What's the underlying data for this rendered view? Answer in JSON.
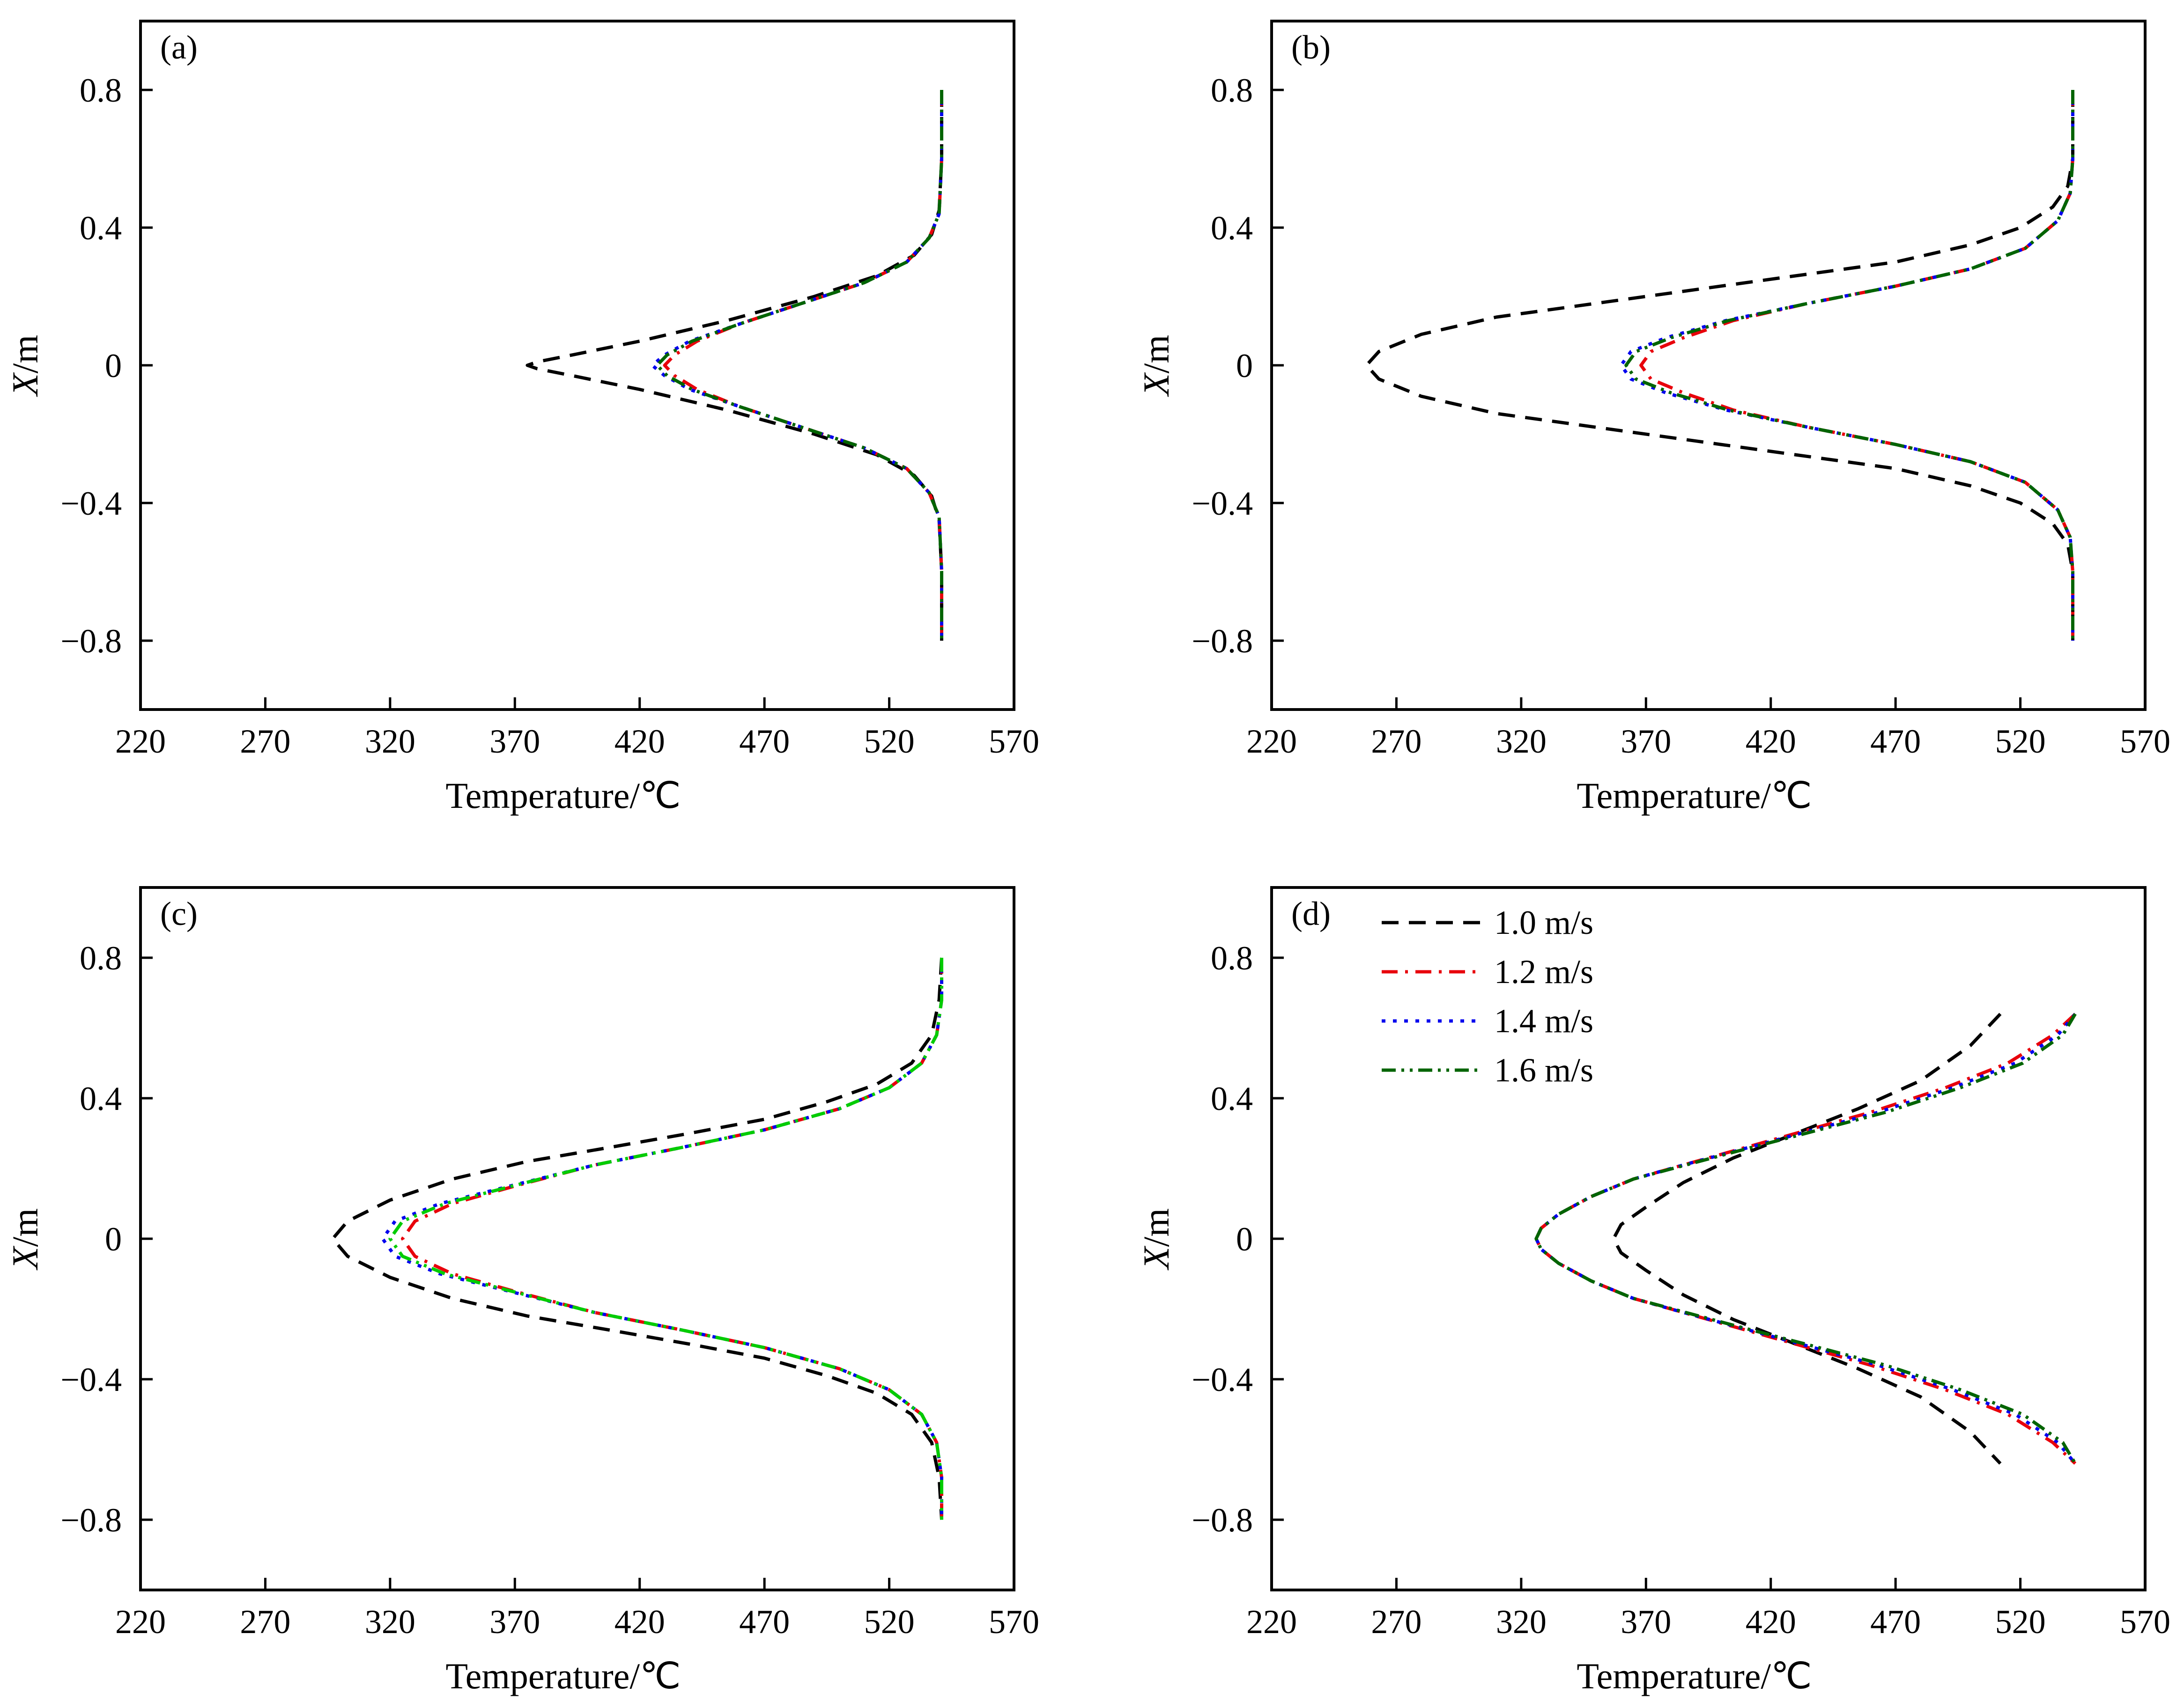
{
  "chart_data": [
    {
      "type": "line",
      "panel_label": "(a)",
      "xlabel": "Temperature/℃",
      "ylabel_italic": "X",
      "ylabel_rest": "/m",
      "xlim": [
        220,
        570
      ],
      "ylim": [
        -1.0,
        1.0
      ],
      "xticks": [
        "220",
        "270",
        "320",
        "370",
        "420",
        "470",
        "520",
        "570"
      ],
      "yticks": [
        "0.8",
        "0.4",
        "0",
        "−0.4",
        "−0.8"
      ],
      "series": [
        {
          "label": "1.0 m/s",
          "x": [
            541,
            541,
            540,
            537,
            530,
            515,
            490,
            455,
            420,
            393,
            379,
            375,
            379,
            393,
            420,
            455,
            490,
            515,
            530,
            537,
            540,
            541,
            541
          ],
          "y": [
            0.8,
            0.6,
            0.45,
            0.38,
            0.32,
            0.26,
            0.2,
            0.13,
            0.07,
            0.03,
            0.01,
            0,
            -0.01,
            -0.03,
            -0.07,
            -0.13,
            -0.2,
            -0.26,
            -0.32,
            -0.38,
            -0.45,
            -0.6,
            -0.8
          ]
        },
        {
          "label": "1.2 m/s",
          "x": [
            541,
            541,
            540,
            536,
            527,
            510,
            485,
            460,
            443,
            434,
            430,
            434,
            443,
            460,
            485,
            510,
            527,
            536,
            540,
            541,
            541
          ],
          "y": [
            0.8,
            0.6,
            0.44,
            0.37,
            0.3,
            0.24,
            0.18,
            0.12,
            0.07,
            0.03,
            0,
            -0.03,
            -0.07,
            -0.12,
            -0.18,
            -0.24,
            -0.3,
            -0.37,
            -0.44,
            -0.6,
            -0.8
          ]
        },
        {
          "label": "1.4 m/s",
          "x": [
            541,
            541,
            540,
            536,
            527,
            510,
            485,
            460,
            440,
            430,
            425,
            430,
            440,
            460,
            485,
            510,
            527,
            536,
            540,
            541,
            541
          ],
          "y": [
            0.8,
            0.6,
            0.44,
            0.37,
            0.3,
            0.24,
            0.18,
            0.12,
            0.07,
            0.03,
            0,
            -0.03,
            -0.07,
            -0.12,
            -0.18,
            -0.24,
            -0.3,
            -0.37,
            -0.44,
            -0.6,
            -0.8
          ]
        },
        {
          "label": "1.6 m/s",
          "x": [
            541,
            541,
            540,
            536,
            527,
            510,
            485,
            460,
            441,
            431,
            427,
            431,
            441,
            460,
            485,
            510,
            527,
            536,
            540,
            541,
            541
          ],
          "y": [
            0.8,
            0.6,
            0.44,
            0.37,
            0.3,
            0.24,
            0.18,
            0.12,
            0.07,
            0.03,
            0,
            -0.03,
            -0.07,
            -0.12,
            -0.18,
            -0.24,
            -0.3,
            -0.37,
            -0.44,
            -0.6,
            -0.8
          ]
        }
      ]
    },
    {
      "type": "line",
      "panel_label": "(b)",
      "xlabel": "Temperature/℃",
      "ylabel_italic": "X",
      "ylabel_rest": "/m",
      "xlim": [
        220,
        570
      ],
      "ylim": [
        -1.0,
        1.0
      ],
      "xticks": [
        "220",
        "270",
        "320",
        "370",
        "420",
        "470",
        "520",
        "570"
      ],
      "yticks": [
        "0.8",
        "0.4",
        "0",
        "−0.4",
        "−0.8"
      ],
      "series": [
        {
          "label": "1.0 m/s",
          "x": [
            541,
            541,
            539,
            533,
            520,
            500,
            470,
            430,
            390,
            350,
            310,
            280,
            263,
            258,
            263,
            280,
            310,
            350,
            390,
            430,
            470,
            500,
            520,
            533,
            539,
            541,
            541
          ],
          "y": [
            0.8,
            0.6,
            0.52,
            0.46,
            0.4,
            0.35,
            0.3,
            0.26,
            0.22,
            0.18,
            0.14,
            0.09,
            0.04,
            0,
            -0.04,
            -0.09,
            -0.14,
            -0.18,
            -0.22,
            -0.26,
            -0.3,
            -0.35,
            -0.4,
            -0.46,
            -0.52,
            -0.6,
            -0.8
          ]
        },
        {
          "label": "1.2 m/s",
          "x": [
            541,
            541,
            540,
            535,
            522,
            500,
            470,
            435,
            405,
            385,
            372,
            368,
            372,
            385,
            405,
            435,
            470,
            500,
            522,
            535,
            540,
            541,
            541
          ],
          "y": [
            0.8,
            0.6,
            0.5,
            0.42,
            0.34,
            0.28,
            0.23,
            0.18,
            0.13,
            0.08,
            0.04,
            0,
            -0.04,
            -0.08,
            -0.13,
            -0.18,
            -0.23,
            -0.28,
            -0.34,
            -0.42,
            -0.5,
            -0.6,
            -0.8
          ]
        },
        {
          "label": "1.4 m/s",
          "x": [
            541,
            541,
            540,
            535,
            522,
            500,
            470,
            435,
            402,
            378,
            364,
            360,
            364,
            378,
            402,
            435,
            470,
            500,
            522,
            535,
            540,
            541,
            541
          ],
          "y": [
            0.8,
            0.6,
            0.5,
            0.42,
            0.34,
            0.28,
            0.23,
            0.18,
            0.13,
            0.08,
            0.04,
            0,
            -0.04,
            -0.08,
            -0.13,
            -0.18,
            -0.23,
            -0.28,
            -0.34,
            -0.42,
            -0.5,
            -0.6,
            -0.8
          ]
        },
        {
          "label": "1.6 m/s",
          "x": [
            541,
            541,
            540,
            535,
            522,
            500,
            470,
            435,
            403,
            380,
            366,
            362,
            366,
            380,
            403,
            435,
            470,
            500,
            522,
            535,
            540,
            541,
            541
          ],
          "y": [
            0.8,
            0.6,
            0.5,
            0.42,
            0.34,
            0.28,
            0.23,
            0.18,
            0.13,
            0.08,
            0.04,
            0,
            -0.04,
            -0.08,
            -0.13,
            -0.18,
            -0.23,
            -0.28,
            -0.34,
            -0.42,
            -0.5,
            -0.6,
            -0.8
          ]
        }
      ]
    },
    {
      "type": "line",
      "panel_label": "(c)",
      "xlabel": "Temperature/℃",
      "ylabel_italic": "X",
      "ylabel_rest": "/m",
      "xlim": [
        220,
        570
      ],
      "ylim": [
        -1.0,
        1.0
      ],
      "xticks": [
        "220",
        "270",
        "320",
        "370",
        "420",
        "470",
        "520",
        "570"
      ],
      "yticks": [
        "0.8",
        "0.4",
        "0",
        "−0.4",
        "−0.8"
      ],
      "series": [
        {
          "label": "1.0 m/s",
          "x": [
            541,
            540,
            537,
            529,
            515,
            495,
            470,
            440,
            408,
            375,
            345,
            320,
            303,
            297,
            303,
            320,
            345,
            375,
            408,
            440,
            470,
            495,
            515,
            529,
            537,
            540,
            541
          ],
          "y": [
            0.8,
            0.68,
            0.58,
            0.5,
            0.44,
            0.39,
            0.34,
            0.3,
            0.26,
            0.22,
            0.17,
            0.11,
            0.05,
            0,
            -0.05,
            -0.11,
            -0.17,
            -0.22,
            -0.26,
            -0.3,
            -0.34,
            -0.39,
            -0.44,
            -0.5,
            -0.58,
            -0.68,
            -0.8
          ]
        },
        {
          "label": "1.2 m/s",
          "x": [
            541,
            541,
            539,
            533,
            520,
            500,
            470,
            437,
            402,
            370,
            345,
            330,
            325,
            330,
            345,
            370,
            402,
            437,
            470,
            500,
            520,
            533,
            539,
            541,
            541
          ],
          "y": [
            0.8,
            0.68,
            0.58,
            0.5,
            0.43,
            0.37,
            0.31,
            0.26,
            0.21,
            0.15,
            0.1,
            0.05,
            0,
            -0.05,
            -0.1,
            -0.15,
            -0.21,
            -0.26,
            -0.31,
            -0.37,
            -0.43,
            -0.5,
            -0.58,
            -0.68,
            -0.8
          ]
        },
        {
          "label": "1.4 m/s",
          "x": [
            541,
            541,
            539,
            533,
            520,
            500,
            470,
            437,
            402,
            368,
            340,
            322,
            317,
            322,
            340,
            368,
            402,
            437,
            470,
            500,
            520,
            533,
            539,
            541,
            541
          ],
          "y": [
            0.8,
            0.68,
            0.58,
            0.5,
            0.43,
            0.37,
            0.31,
            0.26,
            0.21,
            0.15,
            0.1,
            0.05,
            0,
            -0.05,
            -0.1,
            -0.15,
            -0.21,
            -0.26,
            -0.31,
            -0.37,
            -0.43,
            -0.5,
            -0.58,
            -0.68,
            -0.8
          ]
        },
        {
          "label": "1.6 m/s",
          "x": [
            541,
            541,
            539,
            533,
            520,
            500,
            470,
            437,
            402,
            369,
            342,
            325,
            320,
            325,
            342,
            369,
            402,
            437,
            470,
            500,
            520,
            533,
            539,
            541,
            541
          ],
          "y": [
            0.8,
            0.68,
            0.58,
            0.5,
            0.43,
            0.37,
            0.31,
            0.26,
            0.21,
            0.15,
            0.1,
            0.05,
            0,
            -0.05,
            -0.1,
            -0.15,
            -0.21,
            -0.26,
            -0.31,
            -0.37,
            -0.43,
            -0.5,
            -0.58,
            -0.68,
            -0.8
          ]
        }
      ]
    },
    {
      "type": "line",
      "panel_label": "(d)",
      "xlabel": "Temperature/℃",
      "ylabel_italic": "X",
      "ylabel_rest": "/m",
      "xlim": [
        220,
        570
      ],
      "ylim": [
        -1.0,
        1.0
      ],
      "xticks": [
        "220",
        "270",
        "320",
        "370",
        "420",
        "470",
        "520",
        "570"
      ],
      "yticks": [
        "0.8",
        "0.4",
        "0",
        "−0.4",
        "−0.8"
      ],
      "legend": {
        "placement": "top-left",
        "entries": [
          "1.0 m/s",
          "1.2 m/s",
          "1.4 m/s",
          "1.6 m/s"
        ]
      },
      "series": [
        {
          "label": "1.0 m/s",
          "x": [
            512,
            500,
            480,
            455,
            430,
            405,
            385,
            370,
            360,
            357,
            360,
            370,
            385,
            405,
            430,
            455,
            480,
            500,
            512
          ],
          "y": [
            0.64,
            0.55,
            0.45,
            0.37,
            0.3,
            0.23,
            0.16,
            0.09,
            0.04,
            0,
            -0.04,
            -0.09,
            -0.16,
            -0.23,
            -0.3,
            -0.37,
            -0.45,
            -0.55,
            -0.64
          ]
        },
        {
          "label": "1.2 m/s",
          "x": [
            542,
            533,
            515,
            490,
            460,
            430,
            405,
            385,
            365,
            348,
            335,
            328,
            326,
            328,
            335,
            348,
            365,
            385,
            405,
            430,
            460,
            490,
            515,
            533,
            542
          ],
          "y": [
            0.64,
            0.58,
            0.5,
            0.43,
            0.36,
            0.3,
            0.25,
            0.21,
            0.17,
            0.12,
            0.07,
            0.03,
            0,
            -0.03,
            -0.07,
            -0.12,
            -0.17,
            -0.21,
            -0.25,
            -0.3,
            -0.36,
            -0.43,
            -0.5,
            -0.58,
            -0.64
          ]
        },
        {
          "label": "1.4 m/s",
          "x": [
            542,
            535,
            518,
            493,
            463,
            432,
            406,
            385,
            365,
            348,
            335,
            328,
            326,
            328,
            335,
            348,
            365,
            385,
            406,
            432,
            463,
            493,
            518,
            535,
            542
          ],
          "y": [
            0.64,
            0.58,
            0.5,
            0.43,
            0.36,
            0.3,
            0.25,
            0.21,
            0.17,
            0.12,
            0.07,
            0.03,
            0,
            -0.03,
            -0.07,
            -0.12,
            -0.17,
            -0.21,
            -0.25,
            -0.3,
            -0.36,
            -0.43,
            -0.5,
            -0.58,
            -0.64
          ]
        },
        {
          "label": "1.6 m/s",
          "x": [
            542,
            537,
            521,
            496,
            466,
            434,
            407,
            386,
            365,
            348,
            335,
            328,
            326,
            328,
            335,
            348,
            365,
            386,
            407,
            434,
            466,
            496,
            521,
            537,
            542
          ],
          "y": [
            0.64,
            0.58,
            0.5,
            0.43,
            0.36,
            0.3,
            0.25,
            0.21,
            0.17,
            0.12,
            0.07,
            0.03,
            0,
            -0.03,
            -0.07,
            -0.12,
            -0.17,
            -0.21,
            -0.25,
            -0.3,
            -0.36,
            -0.43,
            -0.5,
            -0.58,
            -0.64
          ]
        }
      ]
    }
  ],
  "series_styles": [
    {
      "color": "#000000",
      "dash": "long-dash"
    },
    {
      "color": "#e8000b",
      "dash": "dash-dot"
    },
    {
      "color": "#0000ee",
      "dash": "dot"
    },
    {
      "color": "#006400",
      "dash": "dash-dot-dot"
    }
  ],
  "panel_c_override_colors": [
    "#000000",
    "#e8000b",
    "#0000ee",
    "#00cc00"
  ]
}
